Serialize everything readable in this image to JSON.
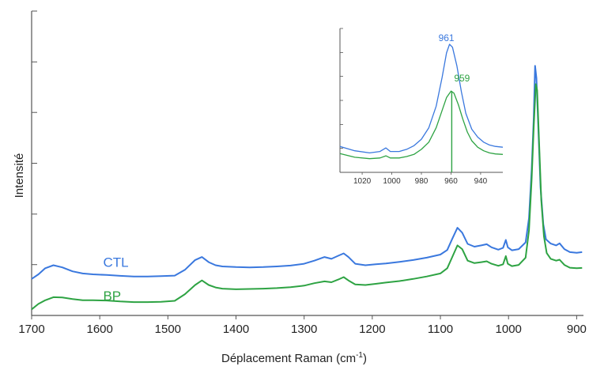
{
  "chart_data": {
    "type": "line",
    "title": "",
    "xlabel": "Déplacement Raman",
    "xlabel_unit_base": "cm",
    "xlabel_unit_exp": "-1",
    "ylabel": "Intensité",
    "xlim": [
      1700,
      890
    ],
    "ylim": [
      0,
      100
    ],
    "x_reversed": true,
    "xticks": [
      1700,
      1600,
      1500,
      1400,
      1300,
      1200,
      1100,
      1000,
      900
    ],
    "yticks": [
      0,
      16.7,
      33.3,
      50,
      66.7,
      83.3,
      100
    ],
    "grid": false,
    "colors": {
      "CTL": "#3a78de",
      "BP": "#2ea343",
      "axis": "#555555"
    },
    "series": [
      {
        "name": "CTL",
        "label_position": [
          1595,
          16
        ],
        "points": [
          [
            1700,
            12
          ],
          [
            1690,
            13.5
          ],
          [
            1680,
            15.5
          ],
          [
            1668,
            16.5
          ],
          [
            1655,
            15.8
          ],
          [
            1640,
            14.5
          ],
          [
            1625,
            13.8
          ],
          [
            1610,
            13.5
          ],
          [
            1590,
            13.3
          ],
          [
            1570,
            13.0
          ],
          [
            1550,
            12.8
          ],
          [
            1530,
            12.8
          ],
          [
            1510,
            12.9
          ],
          [
            1490,
            13.1
          ],
          [
            1475,
            15.0
          ],
          [
            1460,
            18.2
          ],
          [
            1450,
            19.2
          ],
          [
            1440,
            17.5
          ],
          [
            1430,
            16.5
          ],
          [
            1420,
            16.1
          ],
          [
            1400,
            15.9
          ],
          [
            1380,
            15.8
          ],
          [
            1360,
            15.9
          ],
          [
            1340,
            16.1
          ],
          [
            1320,
            16.4
          ],
          [
            1300,
            17.0
          ],
          [
            1285,
            18.0
          ],
          [
            1270,
            19.2
          ],
          [
            1260,
            18.6
          ],
          [
            1250,
            19.6
          ],
          [
            1242,
            20.4
          ],
          [
            1235,
            19.2
          ],
          [
            1225,
            17.0
          ],
          [
            1210,
            16.5
          ],
          [
            1195,
            16.8
          ],
          [
            1180,
            17.1
          ],
          [
            1160,
            17.6
          ],
          [
            1140,
            18.2
          ],
          [
            1120,
            19.0
          ],
          [
            1100,
            20.0
          ],
          [
            1090,
            21.5
          ],
          [
            1083,
            25.0
          ],
          [
            1075,
            28.8
          ],
          [
            1068,
            27.2
          ],
          [
            1060,
            23.5
          ],
          [
            1050,
            22.6
          ],
          [
            1040,
            23.0
          ],
          [
            1032,
            23.4
          ],
          [
            1025,
            22.4
          ],
          [
            1015,
            21.6
          ],
          [
            1008,
            22.2
          ],
          [
            1004,
            24.8
          ],
          [
            1001,
            22.4
          ],
          [
            995,
            21.4
          ],
          [
            985,
            21.8
          ],
          [
            975,
            24.0
          ],
          [
            970,
            32.0
          ],
          [
            966,
            48.0
          ],
          [
            963,
            65.0
          ],
          [
            961,
            82.0
          ],
          [
            959,
            78.0
          ],
          [
            956,
            60.0
          ],
          [
            953,
            42.0
          ],
          [
            949,
            30.0
          ],
          [
            945,
            25.0
          ],
          [
            938,
            23.6
          ],
          [
            930,
            23.0
          ],
          [
            925,
            23.7
          ],
          [
            918,
            21.8
          ],
          [
            910,
            20.8
          ],
          [
            900,
            20.6
          ],
          [
            892,
            20.8
          ]
        ]
      },
      {
        "name": "BP",
        "label_position": [
          1595,
          5
        ],
        "points": [
          [
            1700,
            2
          ],
          [
            1690,
            3.8
          ],
          [
            1680,
            5.0
          ],
          [
            1668,
            6.0
          ],
          [
            1655,
            5.9
          ],
          [
            1640,
            5.4
          ],
          [
            1625,
            5.0
          ],
          [
            1610,
            5.0
          ],
          [
            1590,
            4.9
          ],
          [
            1570,
            4.6
          ],
          [
            1550,
            4.4
          ],
          [
            1530,
            4.4
          ],
          [
            1510,
            4.5
          ],
          [
            1490,
            4.8
          ],
          [
            1475,
            7.0
          ],
          [
            1460,
            10.0
          ],
          [
            1450,
            11.5
          ],
          [
            1440,
            10.0
          ],
          [
            1430,
            9.2
          ],
          [
            1420,
            8.8
          ],
          [
            1400,
            8.6
          ],
          [
            1380,
            8.7
          ],
          [
            1360,
            8.8
          ],
          [
            1340,
            9.0
          ],
          [
            1320,
            9.3
          ],
          [
            1300,
            9.8
          ],
          [
            1285,
            10.6
          ],
          [
            1270,
            11.2
          ],
          [
            1260,
            10.9
          ],
          [
            1250,
            11.8
          ],
          [
            1242,
            12.6
          ],
          [
            1235,
            11.5
          ],
          [
            1225,
            10.2
          ],
          [
            1210,
            10.0
          ],
          [
            1195,
            10.4
          ],
          [
            1180,
            10.8
          ],
          [
            1160,
            11.3
          ],
          [
            1140,
            12.0
          ],
          [
            1120,
            12.8
          ],
          [
            1100,
            13.8
          ],
          [
            1090,
            15.5
          ],
          [
            1083,
            19.0
          ],
          [
            1075,
            23.0
          ],
          [
            1068,
            21.8
          ],
          [
            1060,
            18.0
          ],
          [
            1050,
            17.2
          ],
          [
            1040,
            17.5
          ],
          [
            1032,
            17.8
          ],
          [
            1025,
            17.0
          ],
          [
            1015,
            16.3
          ],
          [
            1008,
            16.8
          ],
          [
            1004,
            19.5
          ],
          [
            1001,
            17.0
          ],
          [
            995,
            16.2
          ],
          [
            985,
            16.6
          ],
          [
            975,
            19.0
          ],
          [
            970,
            28.0
          ],
          [
            966,
            45.0
          ],
          [
            963,
            62.0
          ],
          [
            960,
            76.0
          ],
          [
            958,
            74.0
          ],
          [
            955,
            56.0
          ],
          [
            952,
            38.0
          ],
          [
            948,
            26.0
          ],
          [
            944,
            20.5
          ],
          [
            938,
            18.6
          ],
          [
            930,
            18.0
          ],
          [
            925,
            18.3
          ],
          [
            918,
            16.6
          ],
          [
            910,
            15.7
          ],
          [
            900,
            15.5
          ],
          [
            892,
            15.6
          ]
        ]
      }
    ],
    "inset": {
      "xlim": [
        1035,
        925
      ],
      "ylim": [
        0,
        100
      ],
      "xticks": [
        1020,
        1000,
        980,
        960,
        940
      ],
      "yticks": [
        0,
        16.7,
        33.3,
        50,
        66.7,
        83.3,
        100
      ],
      "peak_labels": [
        {
          "series": "CTL",
          "text": "961",
          "x": 961
        },
        {
          "series": "BP",
          "text": "959",
          "x": 959
        }
      ],
      "marker_x": 959.5,
      "series": [
        {
          "name": "CTL",
          "points": [
            [
              1035,
              18
            ],
            [
              1025,
              15
            ],
            [
              1015,
              13.5
            ],
            [
              1008,
              14.5
            ],
            [
              1004,
              17
            ],
            [
              1001,
              14.5
            ],
            [
              995,
              14.5
            ],
            [
              990,
              16
            ],
            [
              985,
              18.5
            ],
            [
              980,
              23
            ],
            [
              975,
              31
            ],
            [
              970,
              46
            ],
            [
              966,
              66
            ],
            [
              963,
              83
            ],
            [
              961,
              89
            ],
            [
              959,
              87
            ],
            [
              956,
              74
            ],
            [
              953,
              56
            ],
            [
              950,
              41
            ],
            [
              946,
              30
            ],
            [
              942,
              24.5
            ],
            [
              938,
              21
            ],
            [
              934,
              19
            ],
            [
              930,
              18
            ],
            [
              925,
              17.5
            ]
          ]
        },
        {
          "name": "BP",
          "points": [
            [
              1035,
              13
            ],
            [
              1025,
              10.5
            ],
            [
              1015,
              9.5
            ],
            [
              1008,
              10
            ],
            [
              1004,
              11.5
            ],
            [
              1001,
              10
            ],
            [
              995,
              10
            ],
            [
              990,
              11
            ],
            [
              985,
              12.5
            ],
            [
              980,
              16
            ],
            [
              975,
              21
            ],
            [
              970,
              31
            ],
            [
              966,
              43
            ],
            [
              963,
              52
            ],
            [
              960,
              56.5
            ],
            [
              958,
              55
            ],
            [
              955,
              47
            ],
            [
              952,
              37
            ],
            [
              949,
              28
            ],
            [
              946,
              22
            ],
            [
              942,
              17.5
            ],
            [
              938,
              15
            ],
            [
              934,
              13.5
            ],
            [
              930,
              12.8
            ],
            [
              925,
              12.5
            ]
          ]
        }
      ]
    }
  }
}
